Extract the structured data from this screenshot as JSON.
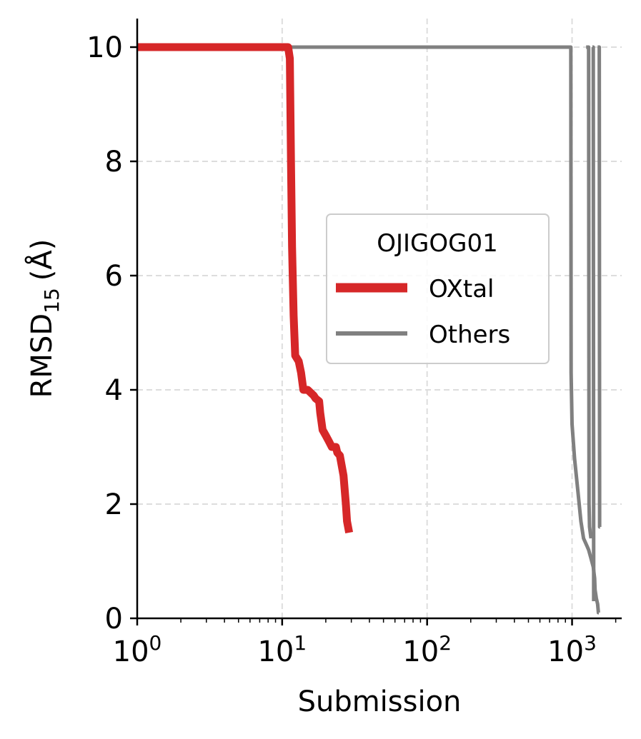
{
  "chart_data": {
    "type": "line",
    "title": "",
    "xlabel": "Submission",
    "ylabel": "RMSD",
    "ylabel_subscript": "15",
    "ylabel_unit": "(Å)",
    "xscale": "log",
    "xlim": [
      1,
      2200
    ],
    "ylim": [
      0,
      10.5
    ],
    "grid": true,
    "x_ticks": [
      {
        "value": 1,
        "base": "10",
        "exp": "0"
      },
      {
        "value": 10,
        "base": "10",
        "exp": "1"
      },
      {
        "value": 100,
        "base": "10",
        "exp": "2"
      },
      {
        "value": 1000,
        "base": "10",
        "exp": "3"
      }
    ],
    "y_ticks": [
      {
        "value": 0,
        "label": "0"
      },
      {
        "value": 2,
        "label": "2"
      },
      {
        "value": 4,
        "label": "4"
      },
      {
        "value": 6,
        "label": "6"
      },
      {
        "value": 8,
        "label": "8"
      },
      {
        "value": 10,
        "label": "10"
      }
    ],
    "legend": {
      "title": "OJIGOG01",
      "placement": "center-right"
    },
    "series": [
      {
        "name": "OXtal",
        "color": "#d62728",
        "x": [
          1,
          11.0,
          11.3,
          11.5,
          11.7,
          12.0,
          12.3,
          13.0,
          13.5,
          14.0,
          15.0,
          16.5,
          17.0,
          18.0,
          18.3,
          19.0,
          20.0,
          21.0,
          22.0,
          23.5,
          24.0,
          25.0,
          26.5,
          27.5,
          28.0,
          29.0
        ],
        "y": [
          10,
          10,
          9.8,
          8.0,
          6.5,
          5.3,
          4.6,
          4.5,
          4.3,
          4.0,
          4.0,
          3.9,
          3.85,
          3.8,
          3.6,
          3.3,
          3.2,
          3.1,
          3.0,
          3.0,
          2.9,
          2.85,
          2.5,
          2.0,
          1.7,
          1.5
        ]
      },
      {
        "name": "Others",
        "color": "#808080",
        "x": [
          1,
          980,
          985,
          1000,
          1040,
          1100,
          1150,
          1200,
          1250,
          1300,
          1350,
          1400,
          1430,
          1440,
          1450,
          1470,
          1500,
          1520,
          1530
        ],
        "y": [
          10,
          10,
          4.3,
          3.4,
          2.8,
          2.2,
          1.7,
          1.4,
          1.3,
          1.2,
          1.05,
          0.9,
          0.7,
          0.5,
          0.45,
          0.35,
          0.25,
          0.1,
          0.1
        ]
      },
      {
        "name": "Others",
        "color": "#808080",
        "x": [
          1250,
          1300,
          1310,
          1320,
          1350
        ],
        "y": [
          10,
          10,
          2.0,
          1.6,
          1.4
        ]
      },
      {
        "name": "Others",
        "color": "#808080",
        "x": [
          1380,
          1400,
          1410
        ],
        "y": [
          10,
          10,
          0.3
        ]
      },
      {
        "name": "Others",
        "color": "#808080",
        "x": [
          1500,
          1540,
          1550,
          1560
        ],
        "y": [
          10,
          10,
          1.6,
          1.6
        ]
      }
    ]
  }
}
